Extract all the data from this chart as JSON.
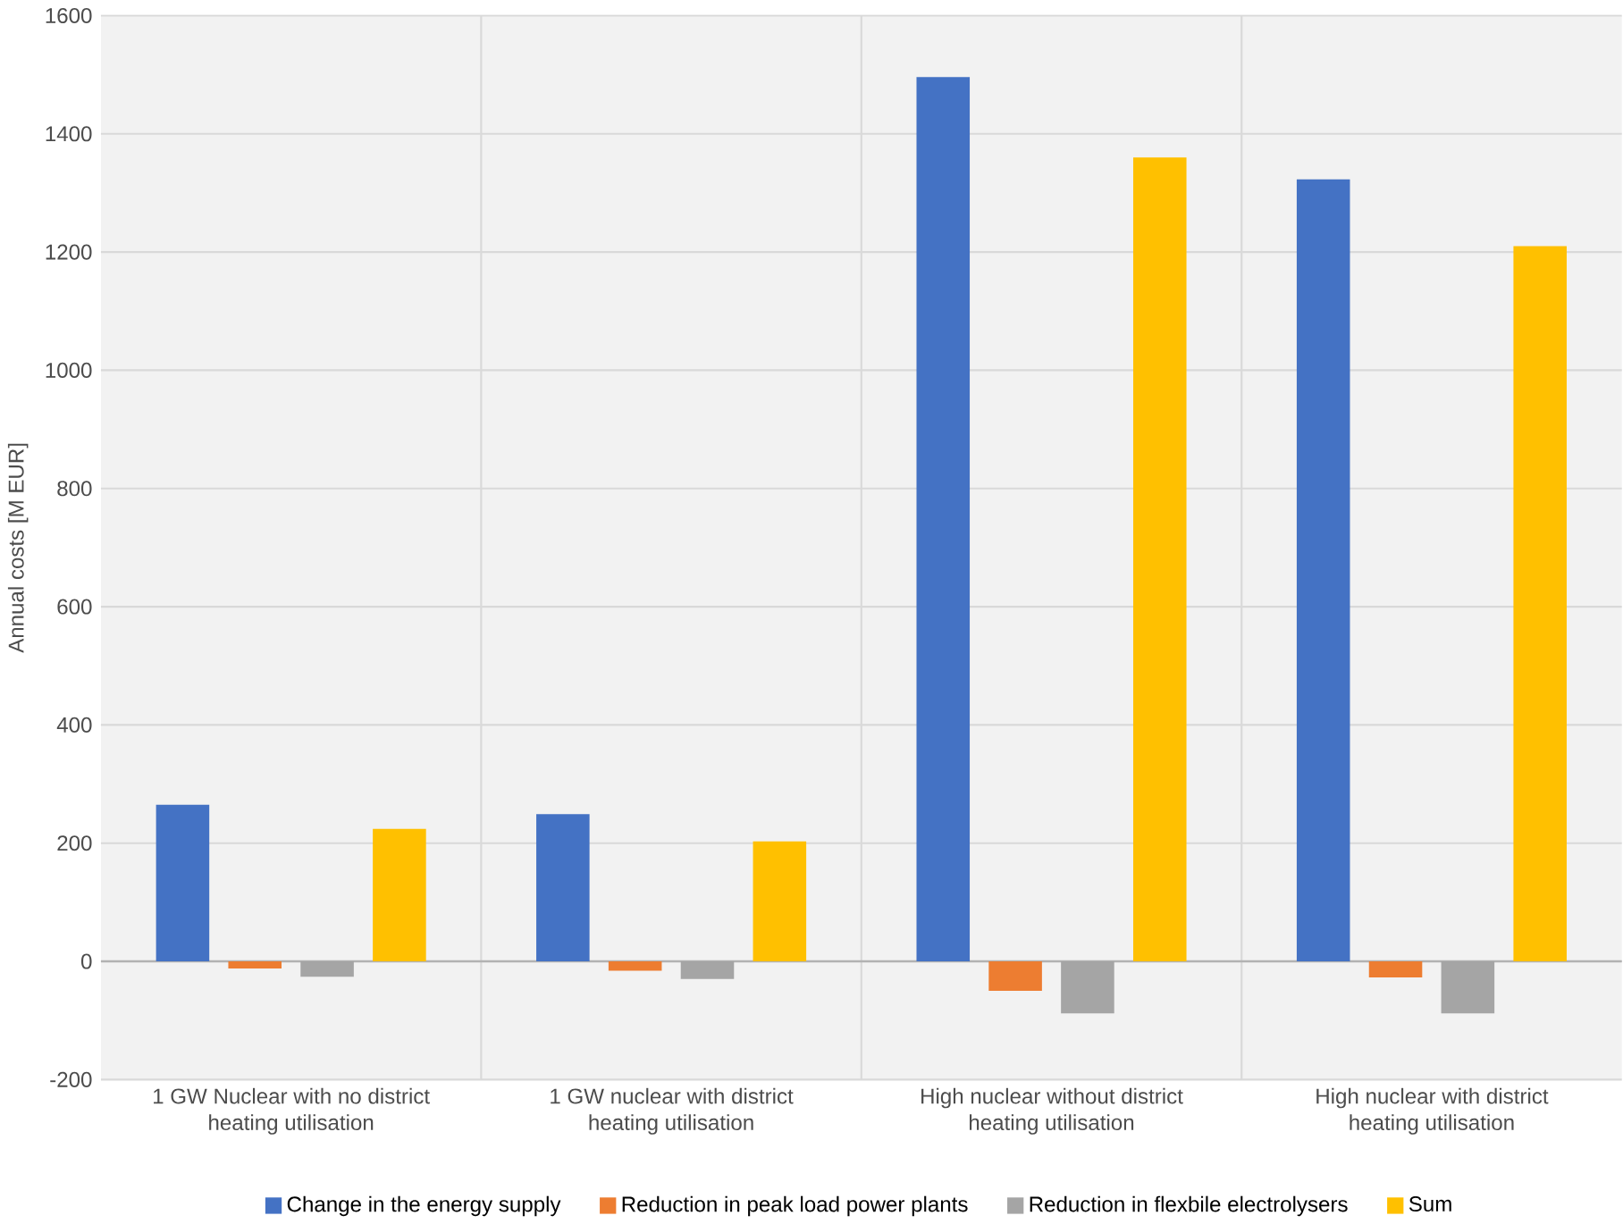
{
  "chart_data": {
    "type": "bar",
    "ylabel": "Annual costs [M EUR]",
    "categories": [
      "1 GW Nuclear with no district heating utilisation",
      "1 GW nuclear with district heating utilisation",
      "High nuclear without district heating utilisation",
      "High nuclear with district heating utilisation"
    ],
    "series": [
      {
        "name": "Change in the energy supply",
        "color": "#4472c4",
        "values": [
          265,
          249,
          1496,
          1323
        ]
      },
      {
        "name": "Reduction in peak load power plants",
        "color": "#ed7d31",
        "values": [
          -12,
          -16,
          -50,
          -27
        ]
      },
      {
        "name": "Reduction in flexbile electrolysers",
        "color": "#a5a5a5",
        "values": [
          -26,
          -30,
          -88,
          -88
        ]
      },
      {
        "name": "Sum",
        "color": "#ffc000",
        "values": [
          224,
          203,
          1360,
          1210
        ]
      }
    ],
    "ylim": [
      -200,
      1600
    ],
    "yticks": [
      -200,
      0,
      200,
      400,
      600,
      800,
      1000,
      1200,
      1400,
      1600
    ],
    "grid": true,
    "legend": "bottom"
  }
}
